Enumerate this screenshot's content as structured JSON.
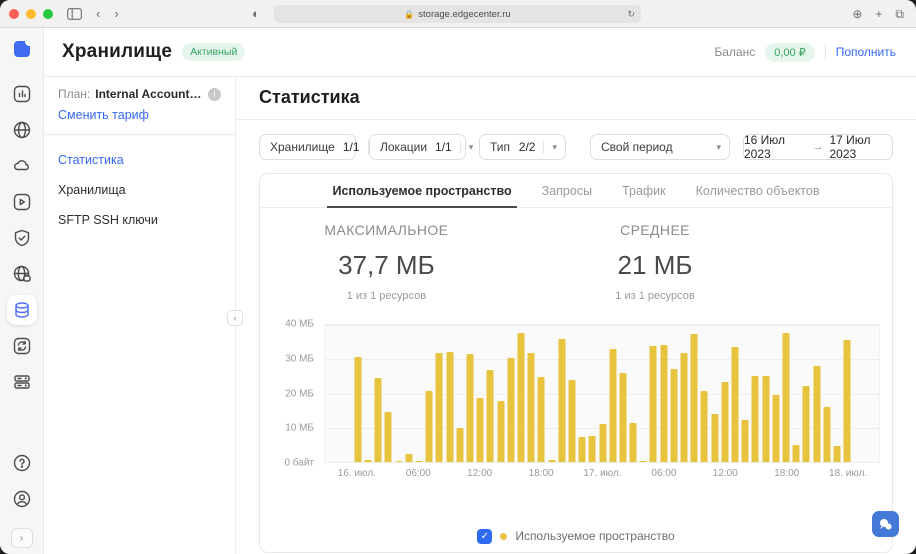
{
  "browser": {
    "url": "storage.edgecenter.ru",
    "traffic_lights": {
      "close": "#ff5f57",
      "minimize": "#febc2e",
      "zoom": "#28c840"
    }
  },
  "header": {
    "title": "Хранилище",
    "status_badge": "Активный",
    "balance_label": "Баланс",
    "balance_value": "0,00 ₽",
    "topup_label": "Пополнить"
  },
  "sidebar_rail": {
    "icons": [
      "analytics",
      "cdn-globe",
      "cloud",
      "streaming",
      "shield",
      "dns-globe",
      "storage-database",
      "sync",
      "servers"
    ],
    "active_icon": "storage-database",
    "bottom_icons": [
      "help",
      "account",
      "expand"
    ]
  },
  "plan": {
    "label": "План:",
    "value": "Internal Account_RUB_St...",
    "change_link": "Сменить тариф"
  },
  "nav": {
    "items": [
      {
        "label": "Статистика",
        "active": true
      },
      {
        "label": "Хранилища",
        "active": false
      },
      {
        "label": "SFTP SSH ключи",
        "active": false
      }
    ]
  },
  "page": {
    "title": "Статистика"
  },
  "filters": {
    "storage": {
      "label": "Хранилище",
      "value": "1/1"
    },
    "locations": {
      "label": "Локации",
      "value": "1/1"
    },
    "type": {
      "label": "Тип",
      "value": "2/2"
    },
    "period": {
      "label": "Свой период"
    },
    "date_from": "16 Июл 2023",
    "date_arrow": "→",
    "date_to": "17 Июл 2023"
  },
  "tabs": [
    {
      "label": "Используемое пространство",
      "active": true
    },
    {
      "label": "Запросы",
      "active": false
    },
    {
      "label": "Трафик",
      "active": false
    },
    {
      "label": "Количество объектов",
      "active": false
    }
  ],
  "stats": [
    {
      "title": "МАКСИМАЛЬНОЕ",
      "value": "37,7 МБ",
      "subtitle": "1 из 1 ресурсов"
    },
    {
      "title": "СРЕДНЕЕ",
      "value": "21 МБ",
      "subtitle": "1 из 1 ресурсов"
    }
  ],
  "chart_data": {
    "type": "bar",
    "title": "Используемое пространство",
    "ylim": [
      0,
      40
    ],
    "grid": true,
    "bar_color": "#e7c33e",
    "ytick_labels": [
      "40 МБ",
      "30 МБ",
      "20 МБ",
      "10 МБ",
      "0 байт"
    ],
    "xticks": [
      {
        "label": "16. июл.",
        "bar": 0
      },
      {
        "label": "06:00",
        "bar": 6
      },
      {
        "label": "12:00",
        "bar": 12
      },
      {
        "label": "18:00",
        "bar": 18
      },
      {
        "label": "17. июл.",
        "bar": 24
      },
      {
        "label": "06:00",
        "bar": 30
      },
      {
        "label": "12:00",
        "bar": 36
      },
      {
        "label": "18:00",
        "bar": 42
      },
      {
        "label": "18. июл.",
        "bar": 48
      }
    ],
    "values_mb": [
      30.7,
      0.5,
      24.5,
      14.7,
      0.3,
      2.4,
      0.2,
      20.6,
      31.7,
      32.1,
      9.8,
      31.4,
      18.7,
      26.9,
      17.9,
      30.4,
      37.7,
      31.7,
      24.7,
      0.7,
      35.8,
      24.0,
      7.2,
      7.7,
      11.0,
      33.1,
      25.9,
      11.5,
      0.3,
      33.8,
      34.1,
      27.3,
      31.7,
      37.4,
      20.6,
      13.9,
      23.5,
      33.6,
      12.3,
      25.0,
      25.2,
      19.7,
      37.6,
      5.0,
      22.3,
      28.0,
      16.1,
      4.8,
      35.7
    ]
  },
  "legend": {
    "checked": true,
    "label": "Используемое пространство"
  }
}
